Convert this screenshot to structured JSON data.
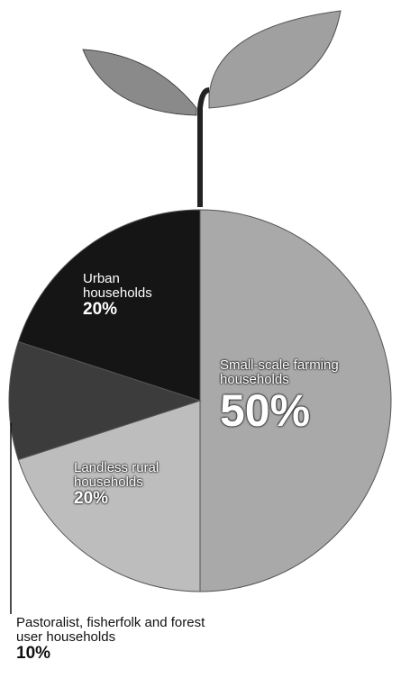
{
  "chart_data": {
    "type": "pie",
    "categories": [
      "Small-scale farming households",
      "Landless rural households",
      "Pastoralist, fisherfolk and forest user households",
      "Urban households"
    ],
    "values": [
      50,
      20,
      10,
      20
    ],
    "value_labels": [
      "50%",
      "20%",
      "10%",
      "20%"
    ],
    "colors": [
      "#a9a9a9",
      "#bdbdbd",
      "#3c3c3c",
      "#151515"
    ]
  }
}
